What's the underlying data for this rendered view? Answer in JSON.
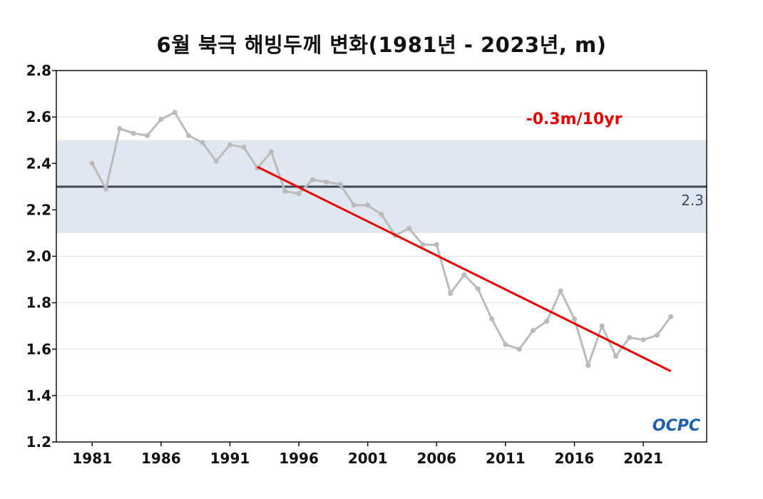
{
  "chart_data": {
    "type": "line",
    "title": "6월 북극 해빙두께 변화(1981년 - 2023년, m)",
    "xlabel": "",
    "ylabel": "",
    "xlim": [
      1978.4,
      2025.6
    ],
    "ylim": [
      1.2,
      2.8
    ],
    "x_ticks": [
      1981,
      1986,
      1991,
      1996,
      2001,
      2006,
      2011,
      2016,
      2021
    ],
    "y_ticks": [
      1.2,
      1.4,
      1.6,
      1.8,
      2.0,
      2.2,
      2.4,
      2.6,
      2.8
    ],
    "y_tick_labels": [
      "1.2",
      "1.4",
      "1.6",
      "1.8",
      "2.0",
      "2.2",
      "2.4",
      "2.6",
      "2.8"
    ],
    "grid": "horizontal",
    "series": [
      {
        "name": "해빙두께",
        "color": "#bbbbbb",
        "x": [
          1981,
          1982,
          1983,
          1984,
          1985,
          1986,
          1987,
          1988,
          1989,
          1990,
          1991,
          1992,
          1993,
          1994,
          1995,
          1996,
          1997,
          1998,
          1999,
          2000,
          2001,
          2002,
          2003,
          2004,
          2005,
          2006,
          2007,
          2008,
          2009,
          2010,
          2011,
          2012,
          2013,
          2014,
          2015,
          2016,
          2017,
          2018,
          2019,
          2020,
          2021,
          2022,
          2023
        ],
        "values": [
          2.4,
          2.29,
          2.55,
          2.53,
          2.52,
          2.59,
          2.62,
          2.52,
          2.49,
          2.41,
          2.48,
          2.47,
          2.38,
          2.45,
          2.28,
          2.27,
          2.33,
          2.32,
          2.31,
          2.22,
          2.22,
          2.18,
          2.09,
          2.12,
          2.05,
          2.05,
          1.84,
          1.92,
          1.86,
          1.73,
          1.62,
          1.6,
          1.68,
          1.72,
          1.85,
          1.73,
          1.53,
          1.7,
          1.57,
          1.65,
          1.64,
          1.66,
          1.74
        ]
      }
    ],
    "trend": {
      "x": [
        1993,
        2023
      ],
      "values": [
        2.385,
        1.505
      ],
      "color": "#e60000",
      "label": "-0.3m/10yr"
    },
    "reference": {
      "value": 2.3,
      "band": [
        2.1,
        2.5
      ],
      "label": "2.3",
      "line_color": "#3d4852",
      "band_color": "#dfe8f1"
    },
    "logo": "OCPC"
  }
}
